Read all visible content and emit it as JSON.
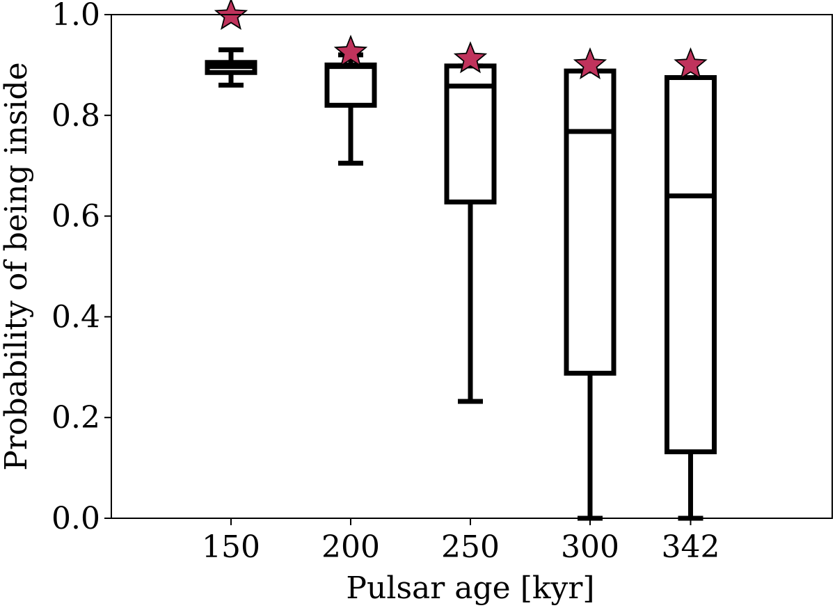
{
  "chart_data": {
    "type": "box",
    "xlabel": "Pulsar age [kyr]",
    "ylabel": "Probability of being inside",
    "ylim": [
      0.0,
      1.0
    ],
    "yticks": [
      "0.0",
      "0.2",
      "0.4",
      "0.6",
      "0.8",
      "1.0"
    ],
    "grid": false,
    "categories": [
      "150",
      "200",
      "250",
      "300",
      "342"
    ],
    "boxes": [
      {
        "x": 150,
        "whisker_low": 0.86,
        "q1": 0.885,
        "median": 0.897,
        "q3": 0.905,
        "whisker_high": 0.93
      },
      {
        "x": 200,
        "whisker_low": 0.705,
        "q1": 0.82,
        "median": 0.897,
        "q3": 0.9,
        "whisker_high": 0.92
      },
      {
        "x": 250,
        "whisker_low": 0.232,
        "q1": 0.628,
        "median": 0.858,
        "q3": 0.898,
        "whisker_high": 0.898
      },
      {
        "x": 300,
        "whisker_low": 0.0,
        "q1": 0.288,
        "median": 0.768,
        "q3": 0.888,
        "whisker_high": 0.888
      },
      {
        "x": 342,
        "whisker_low": 0.0,
        "q1": 0.132,
        "median": 0.64,
        "q3": 0.875,
        "whisker_high": 0.875
      }
    ],
    "markers": {
      "shape": "star",
      "color": "#c0335c",
      "values": [
        0.998,
        0.925,
        0.912,
        0.9,
        0.9
      ]
    }
  }
}
